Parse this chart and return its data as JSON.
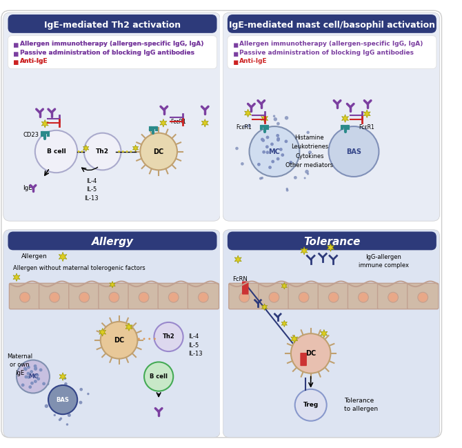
{
  "title_left_top": "IgE-mediated Th2 activation",
  "title_right_top": "IgE-mediated mast cell/basophil activation",
  "title_left_bottom": "Allergy",
  "title_right_bottom": "Tolerance",
  "header_bg": "#2d3a7a",
  "header_text_color": "#ffffff",
  "panel_bg_top": "#e8ecf5",
  "panel_bg_bottom": "#dde3f0",
  "outer_bg": "#ffffff",
  "bullet_color_purple": "#7b3fa0",
  "bullet_color_red": "#cc2222",
  "bullet_text_1": "Allergen immunotherapy (allergen-specific IgG, IgA)",
  "bullet_text_2": "Passive administration of blocking IgG antibodies",
  "bullet_text_3": "Anti-IgE",
  "teal_color": "#2a8a8a",
  "purple_color": "#7b3fa0",
  "pink_color": "#e88080",
  "blue_dark": "#2d3a7a",
  "blue_mid": "#8090c0",
  "blue_light": "#b0bde0",
  "green_color": "#4aaa55",
  "yellow_color": "#ddcc22",
  "gray_cell": "#d0bba8",
  "cell_outline": "#c0a090",
  "navy": "#1e2d6e"
}
